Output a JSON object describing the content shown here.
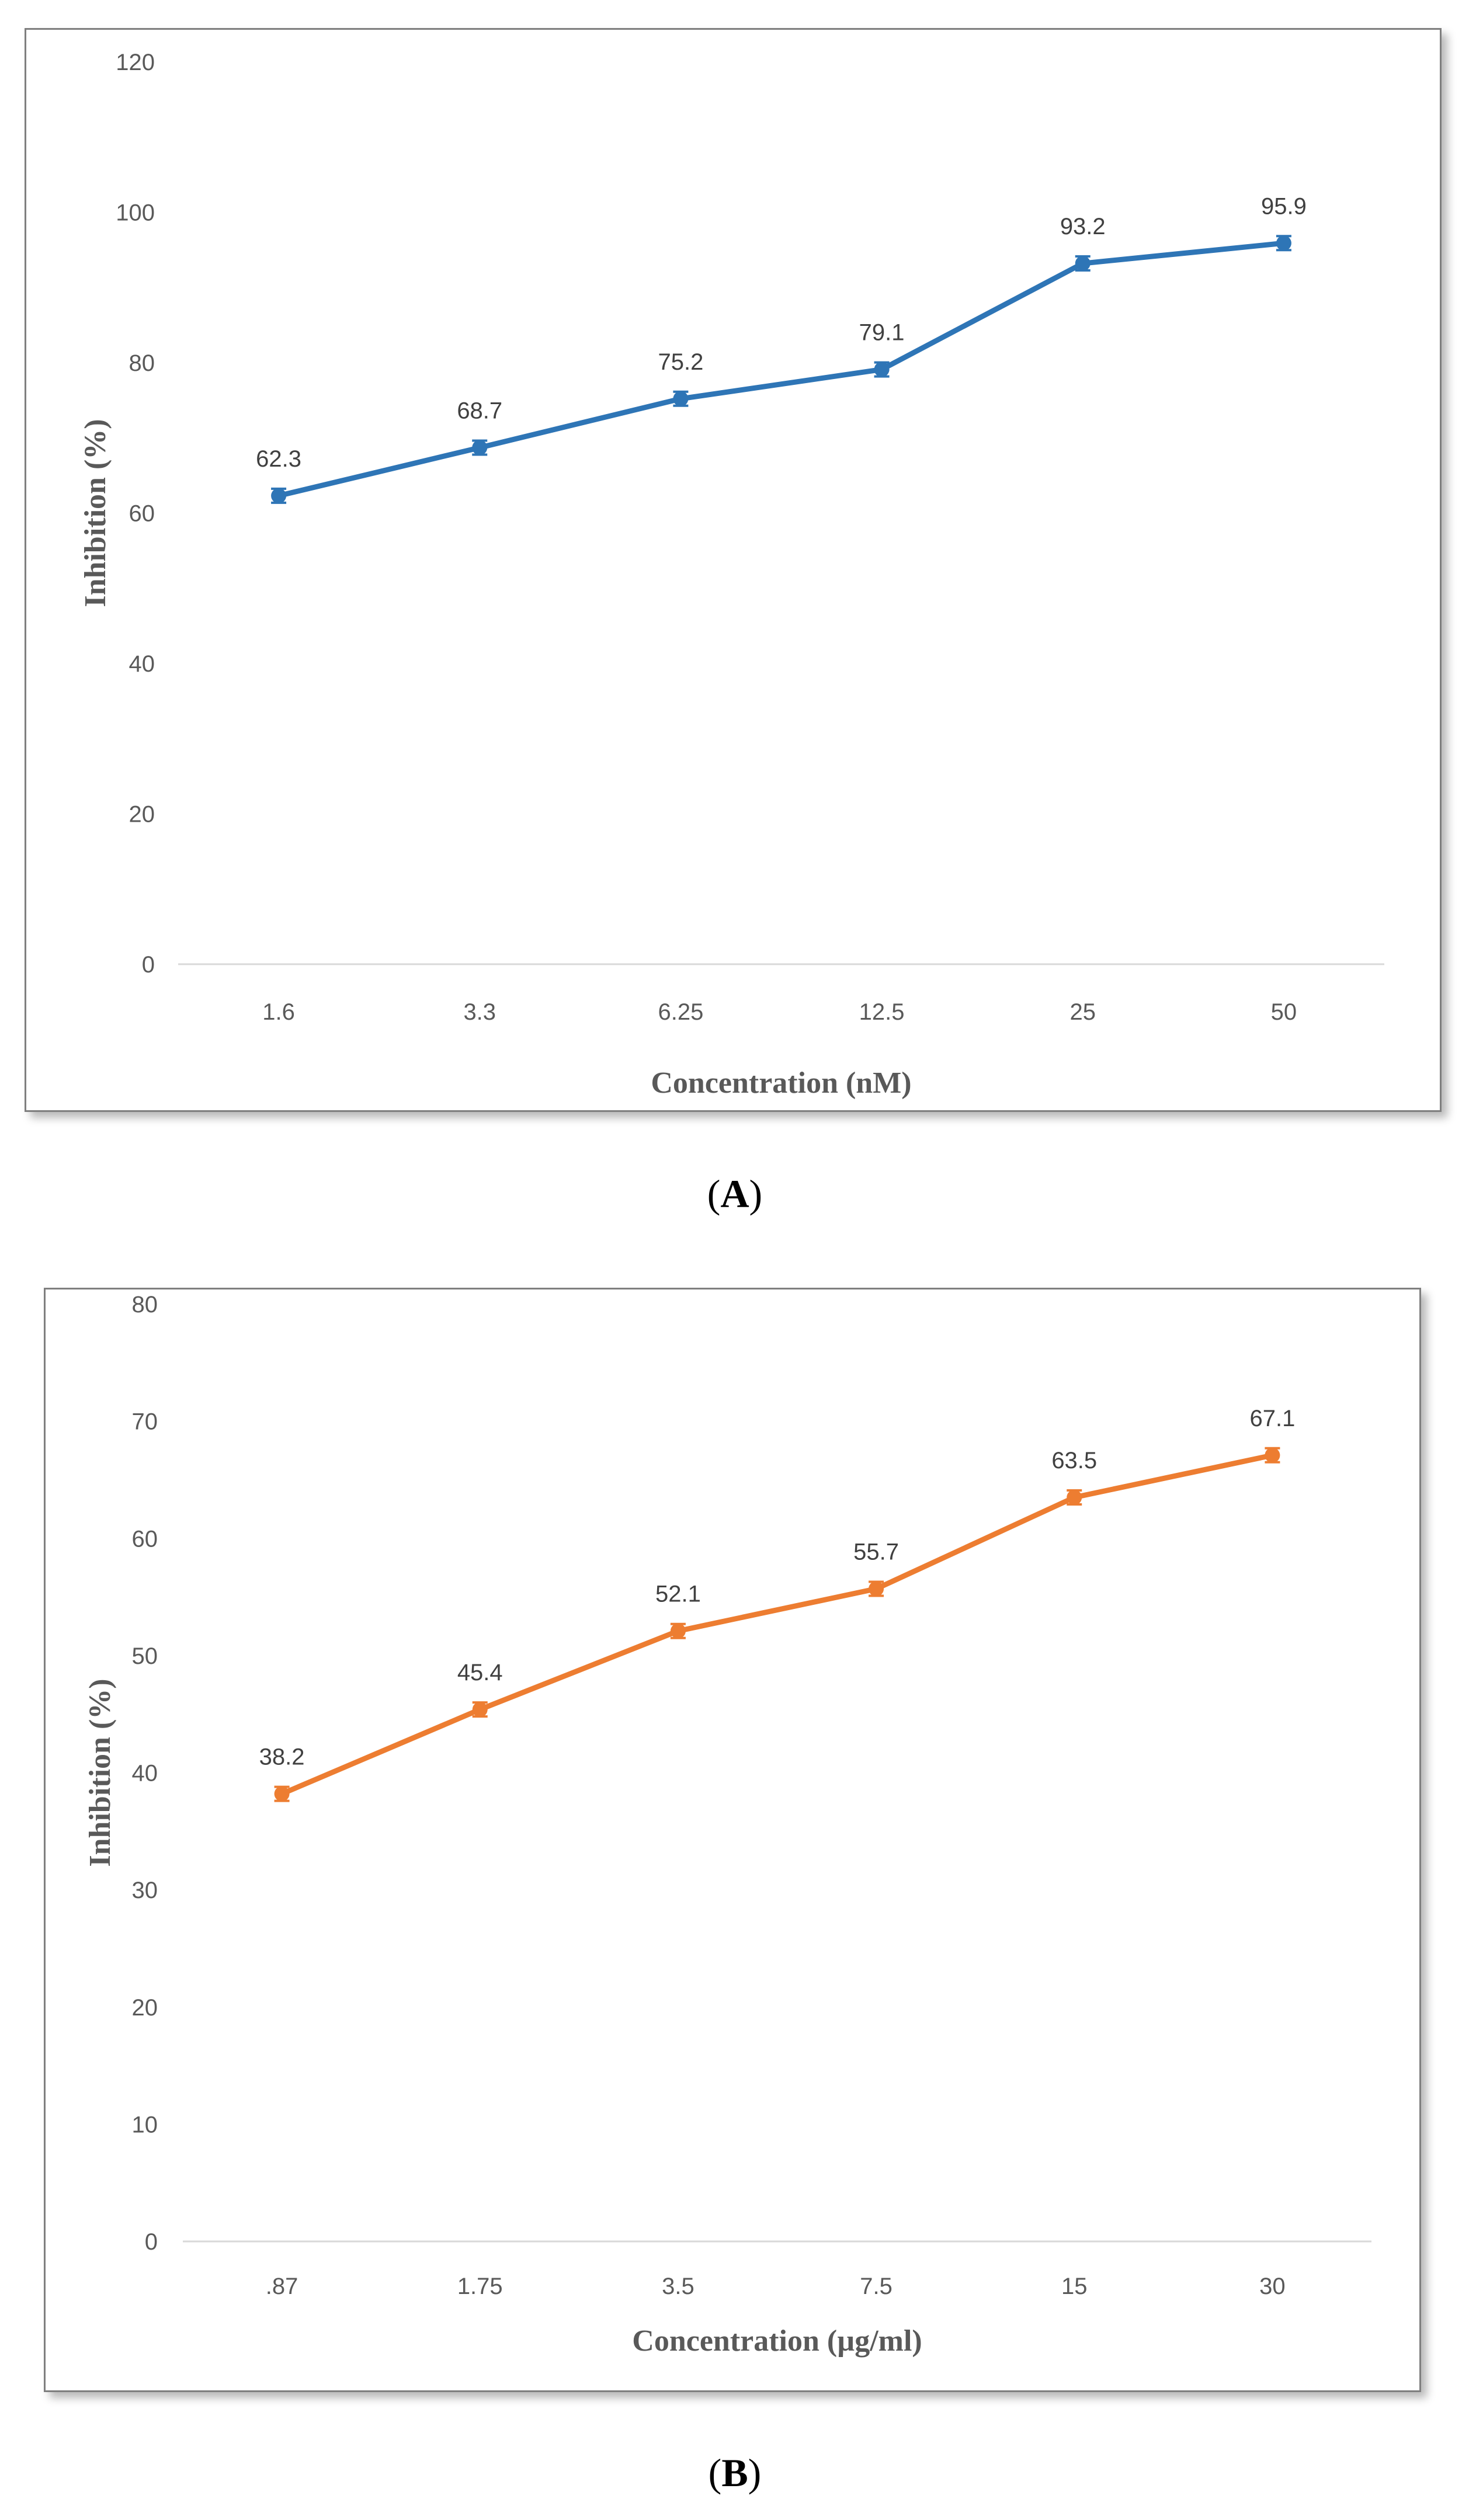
{
  "captions": {
    "a_prefix": "(",
    "a_letter": "A",
    "a_suffix": ")",
    "b_prefix": "(",
    "b_letter": "B",
    "b_suffix": ")"
  },
  "chart_data": [
    {
      "type": "line",
      "categories": [
        "1.6",
        "3.3",
        "6.25",
        "12.5",
        "25",
        "50"
      ],
      "series": [
        {
          "values": [
            62.3,
            68.7,
            75.2,
            79.1,
            93.2,
            95.9
          ],
          "color": "#2e75b6"
        }
      ],
      "data_labels": [
        "62.3",
        "68.7",
        "75.2",
        "79.1",
        "93.2",
        "95.9"
      ],
      "xlabel": "Concentration (nM)",
      "ylabel": "Inhibition (%)",
      "ylim": [
        0,
        120
      ],
      "yticks": [
        0,
        20,
        40,
        60,
        80,
        100,
        120
      ],
      "grid": false,
      "legend": "none"
    },
    {
      "type": "line",
      "categories": [
        ".87",
        "1.75",
        "3.5",
        "7.5",
        "15",
        "30"
      ],
      "series": [
        {
          "values": [
            38.2,
            45.4,
            52.1,
            55.7,
            63.5,
            67.1
          ],
          "color": "#ed7d31"
        }
      ],
      "data_labels": [
        "38.2",
        "45.4",
        "52.1",
        "55.7",
        "63.5",
        "67.1"
      ],
      "xlabel": "Concentration (µg/ml)",
      "ylabel": "Inhibition (%)",
      "ylim": [
        0,
        80
      ],
      "yticks": [
        0,
        10,
        20,
        30,
        40,
        50,
        60,
        70,
        80
      ],
      "grid": false,
      "legend": "none"
    }
  ]
}
